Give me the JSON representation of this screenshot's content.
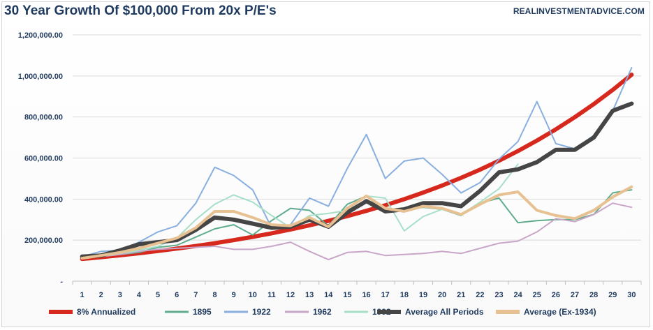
{
  "title": "30 Year Growth Of $100,000 From 20x P/E's",
  "watermark": "REALINVESTMENTADVICE.COM",
  "chart_data": {
    "type": "line",
    "title": "30 Year Growth Of $100,000 From 20x P/E's",
    "xlabel": "",
    "ylabel": "",
    "x": [
      1,
      2,
      3,
      4,
      5,
      6,
      7,
      8,
      9,
      10,
      11,
      12,
      13,
      14,
      15,
      16,
      17,
      18,
      19,
      20,
      21,
      22,
      23,
      24,
      25,
      26,
      27,
      28,
      29,
      30
    ],
    "ylim": [
      0,
      1200000
    ],
    "yticks": [
      0,
      200000,
      400000,
      600000,
      800000,
      1000000,
      1200000
    ],
    "ytick_labels": [
      "-",
      "200,000.00",
      "400,000.00",
      "600,000.00",
      "800,000.00",
      "1,000,000.00",
      "1,200,000.00"
    ],
    "grid": "horizontal",
    "legend_position": "bottom",
    "series": [
      {
        "name": "8% Annualized",
        "color": "#d7281e",
        "width": 6,
        "values": [
          108000,
          116640,
          125971,
          136049,
          146933,
          158687,
          171382,
          185093,
          199900,
          215892,
          233164,
          251817,
          271962,
          293719,
          317217,
          342594,
          370002,
          399602,
          431570,
          466096,
          503383,
          543654,
          587146,
          634118,
          684848,
          739635,
          798806,
          862711,
          931727,
          1006266
        ]
      },
      {
        "name": "1895",
        "color": "#5fad8d",
        "width": 2,
        "values": [
          120000,
          125000,
          130000,
          140000,
          165000,
          175000,
          215000,
          255000,
          275000,
          225000,
          295000,
          355000,
          345000,
          270000,
          375000,
          415000,
          335000,
          345000,
          360000,
          350000,
          320000,
          380000,
          405000,
          285000,
          295000,
          300000,
          300000,
          325000,
          430000,
          445000
        ]
      },
      {
        "name": "1922",
        "color": "#89afe0",
        "width": 2,
        "values": [
          120000,
          145000,
          150000,
          190000,
          240000,
          270000,
          380000,
          555000,
          515000,
          445000,
          260000,
          275000,
          405000,
          365000,
          550000,
          715000,
          500000,
          585000,
          600000,
          520000,
          430000,
          480000,
          595000,
          680000,
          875000,
          670000,
          645000,
          710000,
          830000,
          1040000
        ]
      },
      {
        "name": "1962",
        "color": "#c8a6c8",
        "width": 2,
        "values": [
          110000,
          120000,
          130000,
          145000,
          155000,
          160000,
          165000,
          170000,
          155000,
          155000,
          170000,
          190000,
          145000,
          105000,
          140000,
          145000,
          125000,
          130000,
          135000,
          145000,
          135000,
          160000,
          185000,
          195000,
          240000,
          305000,
          290000,
          325000,
          380000,
          360000
        ]
      },
      {
        "name": "1992",
        "color": "#a8dfc9",
        "width": 2,
        "values": [
          115000,
          120000,
          135000,
          150000,
          170000,
          210000,
          300000,
          375000,
          420000,
          385000,
          320000,
          260000,
          320000,
          330000,
          345000,
          415000,
          405000,
          245000,
          315000,
          350000,
          325000,
          385000,
          450000,
          570000,
          null,
          null,
          null,
          null,
          null,
          null
        ]
      },
      {
        "name": "Average All Periods",
        "color": "#454545",
        "width": 6,
        "values": [
          120000,
          125000,
          150000,
          180000,
          190000,
          200000,
          250000,
          310000,
          300000,
          280000,
          260000,
          265000,
          300000,
          265000,
          335000,
          390000,
          340000,
          350000,
          380000,
          380000,
          365000,
          440000,
          530000,
          545000,
          580000,
          640000,
          640000,
          700000,
          830000,
          865000
        ]
      },
      {
        "name": "Average (Ex-1934)",
        "color": "#e7c192",
        "width": 4,
        "values": [
          112000,
          125000,
          140000,
          160000,
          185000,
          210000,
          260000,
          340000,
          340000,
          310000,
          275000,
          270000,
          310000,
          265000,
          355000,
          415000,
          355000,
          340000,
          365000,
          355000,
          325000,
          375000,
          420000,
          435000,
          345000,
          320000,
          305000,
          345000,
          410000,
          460000
        ]
      }
    ]
  }
}
